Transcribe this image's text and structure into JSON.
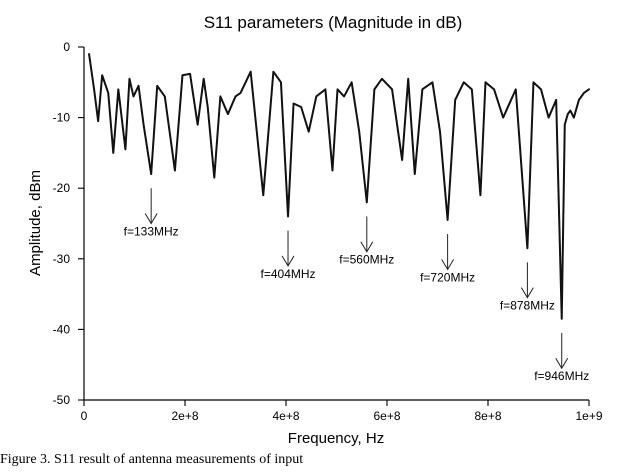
{
  "chart_data": {
    "type": "line",
    "title": "S11 parameters (Magnitude in dB)",
    "xlabel": "Frequency, Hz",
    "ylabel": "Amplitude, dBm",
    "xlim": [
      0,
      1000000000
    ],
    "ylim": [
      -50,
      0
    ],
    "x_ticks": [
      0,
      200000000,
      400000000,
      600000000,
      800000000,
      1000000000
    ],
    "x_tick_labels": [
      "0",
      "2e+8",
      "4e+8",
      "6e+8",
      "8e+8",
      "1e+9"
    ],
    "y_ticks": [
      0,
      -10,
      -20,
      -30,
      -40,
      -50
    ],
    "y_tick_labels": [
      "0",
      "-10",
      "-20",
      "-30",
      "-40",
      "-50"
    ],
    "grid": false,
    "legend": "none",
    "series": [
      {
        "color": "#111111",
        "x": [
          10000000,
          20000000,
          28000000,
          36000000,
          48000000,
          58000000,
          68000000,
          82000000,
          90000000,
          98000000,
          108000000,
          118000000,
          133000000,
          145000000,
          160000000,
          180000000,
          195000000,
          210000000,
          225000000,
          237000000,
          245000000,
          258000000,
          270000000,
          285000000,
          300000000,
          310000000,
          330000000,
          355000000,
          375000000,
          390000000,
          404000000,
          415000000,
          430000000,
          445000000,
          460000000,
          478000000,
          492000000,
          502000000,
          515000000,
          530000000,
          545000000,
          560000000,
          575000000,
          590000000,
          610000000,
          630000000,
          642000000,
          655000000,
          670000000,
          690000000,
          705000000,
          720000000,
          735000000,
          752000000,
          768000000,
          785000000,
          795000000,
          812000000,
          830000000,
          855000000,
          878000000,
          890000000,
          905000000,
          920000000,
          935000000,
          946000000,
          952000000,
          958000000,
          963000000,
          970000000,
          980000000,
          990000000,
          1000000000
        ],
        "values": [
          -1,
          -6,
          -10.5,
          -4,
          -6.5,
          -15,
          -6,
          -14.5,
          -4.5,
          -7,
          -5.5,
          -11,
          -18,
          -5.5,
          -7,
          -17.5,
          -4,
          -3.8,
          -11,
          -4.5,
          -8.5,
          -18.5,
          -7,
          -9.5,
          -7,
          -6.5,
          -3.5,
          -21,
          -3.5,
          -5,
          -24,
          -8,
          -8.5,
          -12,
          -7,
          -6,
          -17.5,
          -6,
          -7,
          -5,
          -12,
          -22,
          -6,
          -4.5,
          -6,
          -16,
          -4.5,
          -18,
          -6,
          -5,
          -12,
          -24.5,
          -7.5,
          -5,
          -6,
          -21,
          -5,
          -6,
          -10,
          -6,
          -28.5,
          -5,
          -6,
          -10,
          -7.5,
          -38.5,
          -11,
          -9.5,
          -9,
          -10,
          -7.5,
          -6.5,
          -6
        ]
      }
    ],
    "annotations": [
      {
        "label": "f=133MHz",
        "x": 133000000,
        "y": -18
      },
      {
        "label": "f=404MHz",
        "x": 404000000,
        "y": -24
      },
      {
        "label": "f=560MHz",
        "x": 560000000,
        "y": -22
      },
      {
        "label": "f=720MHz",
        "x": 720000000,
        "y": -24.5
      },
      {
        "label": "f=878MHz",
        "x": 878000000,
        "y": -28.5
      },
      {
        "label": "f=946MHz",
        "x": 946000000,
        "y": -38.5
      }
    ]
  },
  "caption_text": "Figure 3. S11 result of antenna measurements of input"
}
